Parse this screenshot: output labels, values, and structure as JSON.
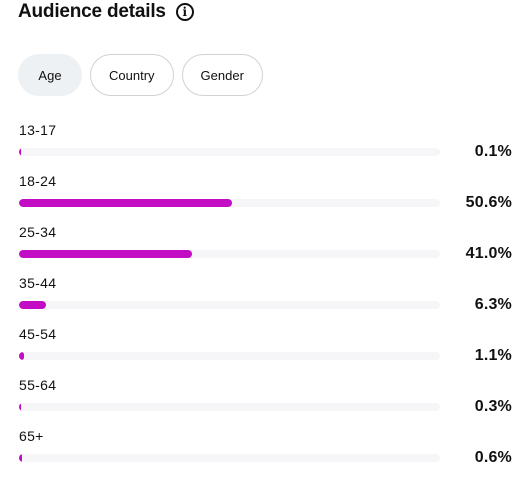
{
  "header": {
    "title": "Audience details",
    "info_icon": "info-icon"
  },
  "tabs": [
    {
      "label": "Age",
      "active": true
    },
    {
      "label": "Country",
      "active": false
    },
    {
      "label": "Gender",
      "active": false
    }
  ],
  "colors": {
    "bar_fill": "#c20dc4",
    "track": "#f6f6f8",
    "active_tab_bg": "#eef1f4"
  },
  "age_groups": [
    {
      "label": "13-17",
      "value": "0.1%",
      "percent": 0.1
    },
    {
      "label": "18-24",
      "value": "50.6%",
      "percent": 50.6
    },
    {
      "label": "25-34",
      "value": "41.0%",
      "percent": 41.0
    },
    {
      "label": "35-44",
      "value": "6.3%",
      "percent": 6.3
    },
    {
      "label": "45-54",
      "value": "1.1%",
      "percent": 1.1
    },
    {
      "label": "55-64",
      "value": "0.3%",
      "percent": 0.3
    },
    {
      "label": "65+",
      "value": "0.6%",
      "percent": 0.6
    }
  ]
}
